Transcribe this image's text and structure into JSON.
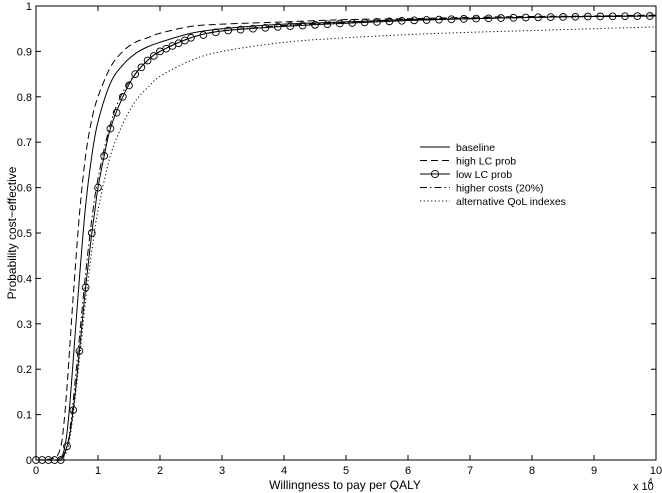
{
  "chart_data": {
    "type": "line",
    "title": "",
    "xlabel": "Willingness to pay per QALY",
    "ylabel": "Probability cost−effective",
    "x_multiplier_label": "x 10",
    "x_multiplier_exponent": "4",
    "xlim": [
      0,
      10
    ],
    "ylim": [
      0,
      1
    ],
    "xticks": [
      "0",
      "1",
      "2",
      "3",
      "4",
      "5",
      "6",
      "7",
      "8",
      "9",
      "10"
    ],
    "yticks": [
      "0",
      "0.1",
      "0.2",
      "0.3",
      "0.4",
      "0.5",
      "0.6",
      "0.7",
      "0.8",
      "0.9",
      "1"
    ],
    "grid": false,
    "legend_position": "right",
    "series": [
      {
        "name": "baseline",
        "style": "solid",
        "x": [
          0,
          0.3,
          0.4,
          0.45,
          0.5,
          0.55,
          0.6,
          0.65,
          0.7,
          0.8,
          0.9,
          1.0,
          1.2,
          1.4,
          1.6,
          1.8,
          2.0,
          2.5,
          3.0,
          4.0,
          5.0,
          6.0,
          7.0,
          8.0,
          9.0,
          10.0
        ],
        "y": [
          0,
          0,
          0.005,
          0.02,
          0.06,
          0.13,
          0.22,
          0.31,
          0.4,
          0.56,
          0.67,
          0.745,
          0.83,
          0.87,
          0.895,
          0.91,
          0.92,
          0.94,
          0.95,
          0.96,
          0.965,
          0.97,
          0.972,
          0.975,
          0.977,
          0.978
        ]
      },
      {
        "name": "high LC prob",
        "style": "dashed",
        "x": [
          0,
          0.3,
          0.4,
          0.45,
          0.5,
          0.55,
          0.6,
          0.7,
          0.8,
          0.9,
          1.0,
          1.2,
          1.4,
          1.6,
          1.8,
          2.0,
          2.5,
          3.0,
          4.0,
          5.0,
          6.0,
          7.0,
          8.0,
          9.0,
          10.0
        ],
        "y": [
          0,
          0.005,
          0.03,
          0.08,
          0.16,
          0.26,
          0.36,
          0.54,
          0.67,
          0.75,
          0.8,
          0.865,
          0.9,
          0.92,
          0.93,
          0.94,
          0.955,
          0.96,
          0.965,
          0.97,
          0.972,
          0.975,
          0.977,
          0.978,
          0.98
        ]
      },
      {
        "name": "low LC prob",
        "style": "solid-circle",
        "x": [
          0,
          0.3,
          0.4,
          0.45,
          0.5,
          0.55,
          0.6,
          0.65,
          0.7,
          0.75,
          0.8,
          0.85,
          0.9,
          0.95,
          1.0,
          1.1,
          1.2,
          1.4,
          1.6,
          1.8,
          2.0,
          2.5,
          3.0,
          4.0,
          5.0,
          6.0,
          7.0,
          8.0,
          9.0,
          10.0
        ],
        "y": [
          0,
          0,
          0.0,
          0.01,
          0.03,
          0.06,
          0.11,
          0.17,
          0.24,
          0.31,
          0.38,
          0.44,
          0.5,
          0.55,
          0.6,
          0.67,
          0.73,
          0.8,
          0.85,
          0.88,
          0.9,
          0.93,
          0.945,
          0.955,
          0.962,
          0.968,
          0.972,
          0.975,
          0.977,
          0.978
        ]
      },
      {
        "name": "higher costs (20%)",
        "style": "dashdot",
        "x": [
          0,
          0.3,
          0.4,
          0.5,
          0.55,
          0.6,
          0.65,
          0.7,
          0.8,
          0.9,
          1.0,
          1.2,
          1.4,
          1.6,
          1.8,
          2.0,
          2.5,
          3.0,
          4.0,
          5.0,
          6.0,
          7.0,
          8.0,
          9.0,
          10.0
        ],
        "y": [
          0,
          0,
          0,
          0.03,
          0.07,
          0.13,
          0.2,
          0.27,
          0.41,
          0.53,
          0.62,
          0.74,
          0.81,
          0.85,
          0.88,
          0.9,
          0.93,
          0.945,
          0.957,
          0.964,
          0.97,
          0.973,
          0.975,
          0.977,
          0.978
        ]
      },
      {
        "name": "alternative QoL indexes",
        "style": "dotted",
        "x": [
          0,
          0.3,
          0.4,
          0.5,
          0.55,
          0.6,
          0.65,
          0.7,
          0.8,
          0.9,
          1.0,
          1.2,
          1.4,
          1.6,
          1.8,
          2.0,
          2.5,
          3.0,
          4.0,
          5.0,
          6.0,
          7.0,
          8.0,
          9.0,
          10.0
        ],
        "y": [
          0,
          0,
          0,
          0.02,
          0.05,
          0.1,
          0.16,
          0.22,
          0.35,
          0.46,
          0.55,
          0.67,
          0.74,
          0.79,
          0.82,
          0.845,
          0.88,
          0.9,
          0.92,
          0.93,
          0.937,
          0.942,
          0.946,
          0.95,
          0.954
        ]
      }
    ]
  }
}
